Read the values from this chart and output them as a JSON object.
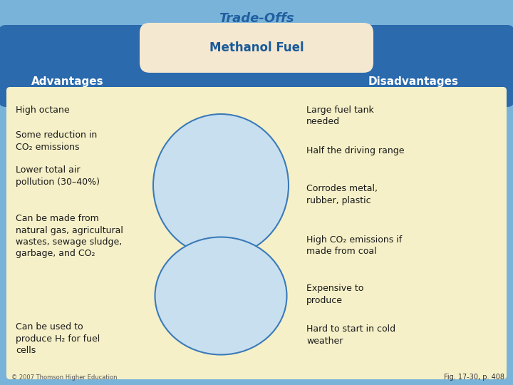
{
  "title": "Trade-Offs",
  "subtitle": "Methanol Fuel",
  "header_left": "Advantages",
  "header_right": "Disadvantages",
  "advantages": [
    "High octane",
    "Some reduction in\nCO₂ emissions",
    "Lower total air\npollution (30–40%)",
    "Can be made from\nnatural gas, agricultural\nwastes, sewage sludge,\ngarbage, and CO₂",
    "Can be used to\nproduce H₂ for fuel\ncells"
  ],
  "disadvantages": [
    "Large fuel tank\nneeded",
    "Half the driving range",
    "Corrodes metal,\nrubber, plastic",
    "High CO₂ emissions if\nmade from coal",
    "Expensive to\nproduce",
    "Hard to start in cold\nweather"
  ],
  "bg_outer": "#7ab3d9",
  "bg_inner": "#f5f0c8",
  "header_bar_color": "#2a6aad",
  "title_color": "#2060a0",
  "subtitle_color": "#1a5a9a",
  "header_text_color": "#ffffff",
  "body_text_color": "#1a1a1a",
  "subtitle_box_fill_top": "#f5e8d0",
  "subtitle_box_fill_bot": "#e8d0a8",
  "ellipse_color": "#c8dff0",
  "ellipse_border": "#3a7ab8",
  "caption": "Fig. 17-30, p. 408",
  "copyright": "© 2007 Thomson Higher Education",
  "adv_y": [
    148,
    183,
    232,
    300,
    452
  ],
  "dis_y": [
    148,
    205,
    258,
    330,
    398,
    455
  ]
}
